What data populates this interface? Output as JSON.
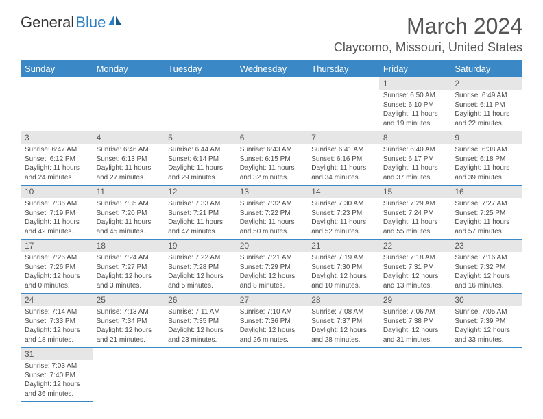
{
  "logo": {
    "dark": "General",
    "blue": "Blue"
  },
  "title": "March 2024",
  "location": "Claycomo, Missouri, United States",
  "colors": {
    "header_bg": "#3a88c6",
    "header_text": "#ffffff",
    "daynum_bg": "#e6e6e6",
    "border": "#3a88c6",
    "body_text": "#4a4a4a"
  },
  "weekdays": [
    "Sunday",
    "Monday",
    "Tuesday",
    "Wednesday",
    "Thursday",
    "Friday",
    "Saturday"
  ],
  "weeks": [
    [
      null,
      null,
      null,
      null,
      null,
      {
        "n": "1",
        "sr": "Sunrise: 6:50 AM",
        "ss": "Sunset: 6:10 PM",
        "dl": "Daylight: 11 hours and 19 minutes."
      },
      {
        "n": "2",
        "sr": "Sunrise: 6:49 AM",
        "ss": "Sunset: 6:11 PM",
        "dl": "Daylight: 11 hours and 22 minutes."
      }
    ],
    [
      {
        "n": "3",
        "sr": "Sunrise: 6:47 AM",
        "ss": "Sunset: 6:12 PM",
        "dl": "Daylight: 11 hours and 24 minutes."
      },
      {
        "n": "4",
        "sr": "Sunrise: 6:46 AM",
        "ss": "Sunset: 6:13 PM",
        "dl": "Daylight: 11 hours and 27 minutes."
      },
      {
        "n": "5",
        "sr": "Sunrise: 6:44 AM",
        "ss": "Sunset: 6:14 PM",
        "dl": "Daylight: 11 hours and 29 minutes."
      },
      {
        "n": "6",
        "sr": "Sunrise: 6:43 AM",
        "ss": "Sunset: 6:15 PM",
        "dl": "Daylight: 11 hours and 32 minutes."
      },
      {
        "n": "7",
        "sr": "Sunrise: 6:41 AM",
        "ss": "Sunset: 6:16 PM",
        "dl": "Daylight: 11 hours and 34 minutes."
      },
      {
        "n": "8",
        "sr": "Sunrise: 6:40 AM",
        "ss": "Sunset: 6:17 PM",
        "dl": "Daylight: 11 hours and 37 minutes."
      },
      {
        "n": "9",
        "sr": "Sunrise: 6:38 AM",
        "ss": "Sunset: 6:18 PM",
        "dl": "Daylight: 11 hours and 39 minutes."
      }
    ],
    [
      {
        "n": "10",
        "sr": "Sunrise: 7:36 AM",
        "ss": "Sunset: 7:19 PM",
        "dl": "Daylight: 11 hours and 42 minutes."
      },
      {
        "n": "11",
        "sr": "Sunrise: 7:35 AM",
        "ss": "Sunset: 7:20 PM",
        "dl": "Daylight: 11 hours and 45 minutes."
      },
      {
        "n": "12",
        "sr": "Sunrise: 7:33 AM",
        "ss": "Sunset: 7:21 PM",
        "dl": "Daylight: 11 hours and 47 minutes."
      },
      {
        "n": "13",
        "sr": "Sunrise: 7:32 AM",
        "ss": "Sunset: 7:22 PM",
        "dl": "Daylight: 11 hours and 50 minutes."
      },
      {
        "n": "14",
        "sr": "Sunrise: 7:30 AM",
        "ss": "Sunset: 7:23 PM",
        "dl": "Daylight: 11 hours and 52 minutes."
      },
      {
        "n": "15",
        "sr": "Sunrise: 7:29 AM",
        "ss": "Sunset: 7:24 PM",
        "dl": "Daylight: 11 hours and 55 minutes."
      },
      {
        "n": "16",
        "sr": "Sunrise: 7:27 AM",
        "ss": "Sunset: 7:25 PM",
        "dl": "Daylight: 11 hours and 57 minutes."
      }
    ],
    [
      {
        "n": "17",
        "sr": "Sunrise: 7:26 AM",
        "ss": "Sunset: 7:26 PM",
        "dl": "Daylight: 12 hours and 0 minutes."
      },
      {
        "n": "18",
        "sr": "Sunrise: 7:24 AM",
        "ss": "Sunset: 7:27 PM",
        "dl": "Daylight: 12 hours and 3 minutes."
      },
      {
        "n": "19",
        "sr": "Sunrise: 7:22 AM",
        "ss": "Sunset: 7:28 PM",
        "dl": "Daylight: 12 hours and 5 minutes."
      },
      {
        "n": "20",
        "sr": "Sunrise: 7:21 AM",
        "ss": "Sunset: 7:29 PM",
        "dl": "Daylight: 12 hours and 8 minutes."
      },
      {
        "n": "21",
        "sr": "Sunrise: 7:19 AM",
        "ss": "Sunset: 7:30 PM",
        "dl": "Daylight: 12 hours and 10 minutes."
      },
      {
        "n": "22",
        "sr": "Sunrise: 7:18 AM",
        "ss": "Sunset: 7:31 PM",
        "dl": "Daylight: 12 hours and 13 minutes."
      },
      {
        "n": "23",
        "sr": "Sunrise: 7:16 AM",
        "ss": "Sunset: 7:32 PM",
        "dl": "Daylight: 12 hours and 16 minutes."
      }
    ],
    [
      {
        "n": "24",
        "sr": "Sunrise: 7:14 AM",
        "ss": "Sunset: 7:33 PM",
        "dl": "Daylight: 12 hours and 18 minutes."
      },
      {
        "n": "25",
        "sr": "Sunrise: 7:13 AM",
        "ss": "Sunset: 7:34 PM",
        "dl": "Daylight: 12 hours and 21 minutes."
      },
      {
        "n": "26",
        "sr": "Sunrise: 7:11 AM",
        "ss": "Sunset: 7:35 PM",
        "dl": "Daylight: 12 hours and 23 minutes."
      },
      {
        "n": "27",
        "sr": "Sunrise: 7:10 AM",
        "ss": "Sunset: 7:36 PM",
        "dl": "Daylight: 12 hours and 26 minutes."
      },
      {
        "n": "28",
        "sr": "Sunrise: 7:08 AM",
        "ss": "Sunset: 7:37 PM",
        "dl": "Daylight: 12 hours and 28 minutes."
      },
      {
        "n": "29",
        "sr": "Sunrise: 7:06 AM",
        "ss": "Sunset: 7:38 PM",
        "dl": "Daylight: 12 hours and 31 minutes."
      },
      {
        "n": "30",
        "sr": "Sunrise: 7:05 AM",
        "ss": "Sunset: 7:39 PM",
        "dl": "Daylight: 12 hours and 33 minutes."
      }
    ],
    [
      {
        "n": "31",
        "sr": "Sunrise: 7:03 AM",
        "ss": "Sunset: 7:40 PM",
        "dl": "Daylight: 12 hours and 36 minutes."
      },
      null,
      null,
      null,
      null,
      null,
      null
    ]
  ]
}
